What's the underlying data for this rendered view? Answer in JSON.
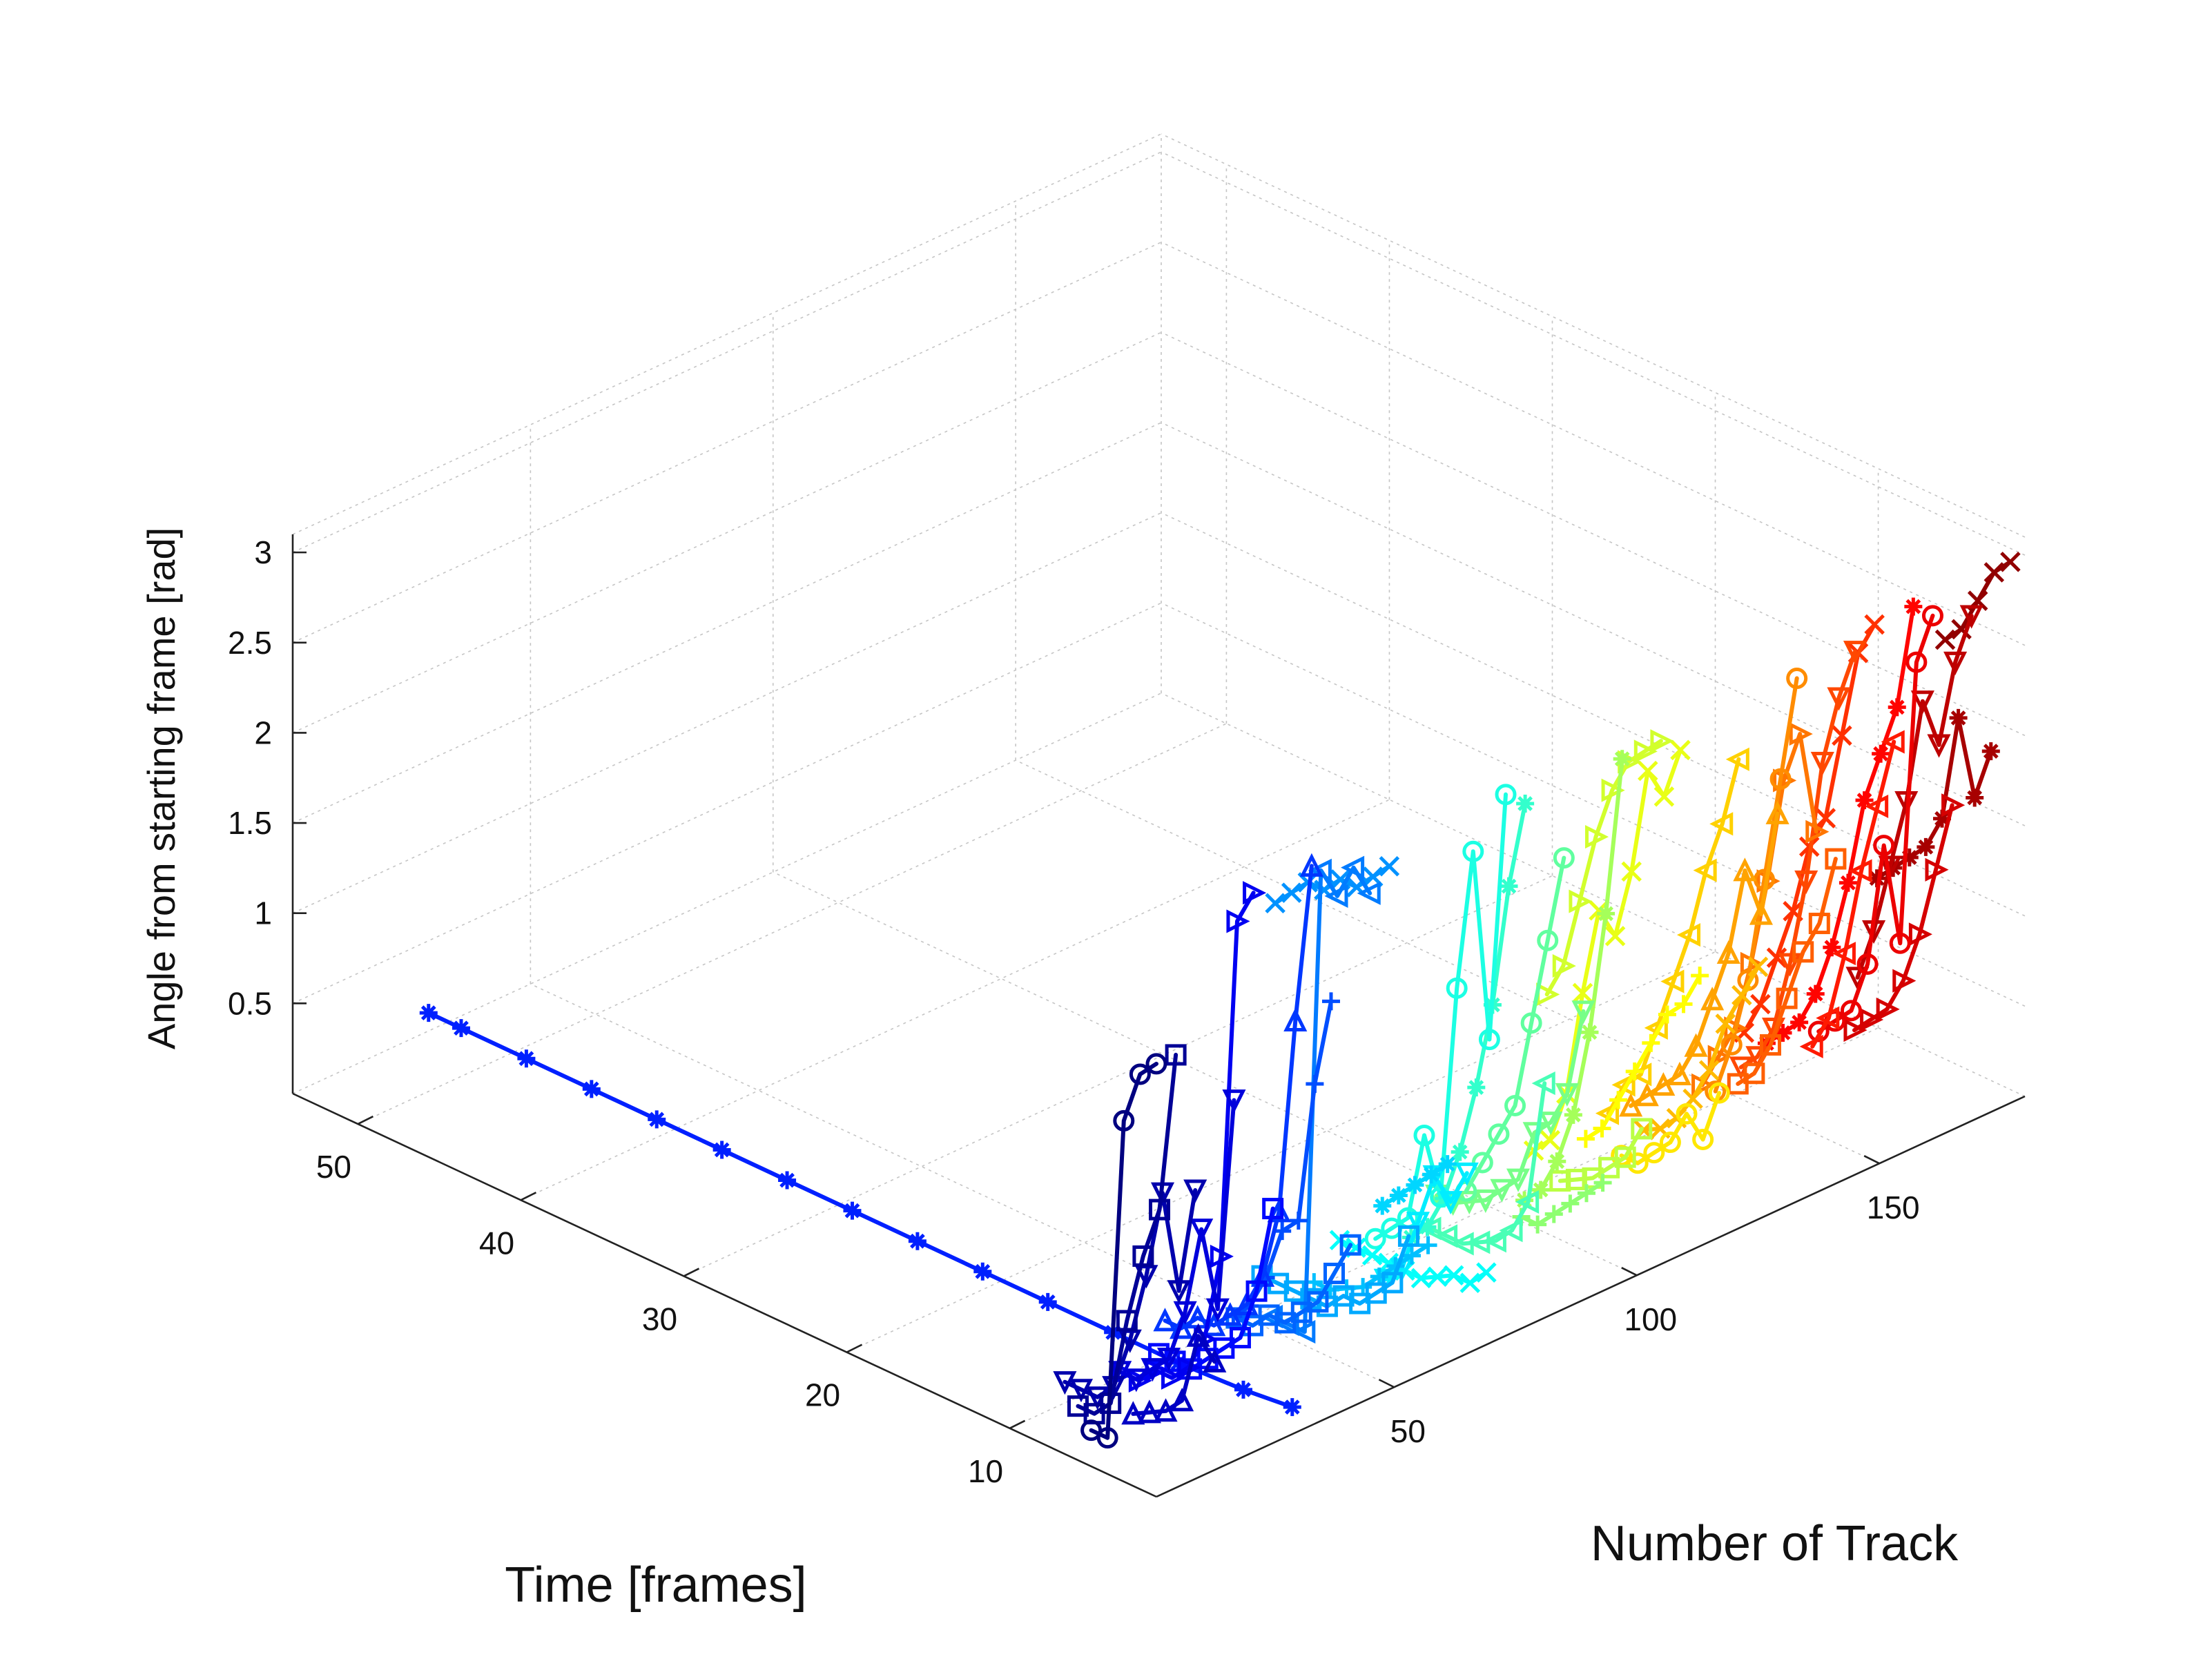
{
  "chart_data": {
    "type": "line",
    "projection": "3d",
    "xlabel": "Time [frames]",
    "ylabel": "Number of Track",
    "zlabel": "Angle from starting frame [rad]",
    "xlim": [
      1,
      54
    ],
    "ylim": [
      1,
      180
    ],
    "zlim": [
      0,
      3.1
    ],
    "xticks": [
      10,
      20,
      30,
      40,
      50
    ],
    "yticks": [
      50,
      100,
      150
    ],
    "zticks": [
      0.5,
      1,
      1.5,
      2,
      2.5,
      3
    ],
    "grid": true,
    "colormap": "jet",
    "legend": "none",
    "series": [
      {
        "track": 1,
        "marker": "o",
        "x": [
          1,
          2,
          3,
          4,
          5
        ],
        "z": [
          2.4,
          2.3,
          2.0,
          0.2,
          0.2
        ]
      },
      {
        "track": 5,
        "marker": "s",
        "x": [
          1,
          2,
          3,
          4,
          5,
          6,
          7
        ],
        "z": [
          2.4,
          1.5,
          1.2,
          0.8,
          0.3,
          0.2,
          0.2
        ]
      },
      {
        "track": 9,
        "marker": "v",
        "x": [
          1,
          2,
          3,
          4,
          5,
          6,
          7,
          8,
          9
        ],
        "z": [
          1.6,
          1.0,
          1.5,
          1.0,
          0.6,
          0.3,
          0.2,
          0.2,
          0.2
        ]
      },
      {
        "track": 13,
        "marker": "^",
        "x": [
          1,
          2,
          3,
          4,
          5,
          6
        ],
        "z": [
          0.6,
          0.7,
          0.3,
          0.2,
          0.15,
          0.1
        ]
      },
      {
        "track": 17,
        "marker": "v",
        "x": [
          1,
          2,
          3,
          4,
          5,
          6,
          7,
          8
        ],
        "z": [
          2.0,
          0.8,
          1.2,
          0.7,
          0.4,
          0.3,
          0.2,
          0.2
        ]
      },
      {
        "track": 21,
        "marker": ">",
        "x": [
          1,
          2,
          3,
          4,
          5,
          6,
          7,
          8,
          9
        ],
        "z": [
          3.1,
          2.9,
          1.0,
          0.5,
          0.3,
          0.2,
          0.2,
          0.1,
          0.1
        ]
      },
      {
        "track": 25,
        "marker": "s",
        "x": [
          1,
          2,
          3,
          4,
          5,
          6,
          7,
          8
        ],
        "z": [
          1.3,
          0.8,
          0.5,
          0.4,
          0.3,
          0.2,
          0.2,
          0.2
        ]
      },
      {
        "track": 29,
        "marker": "*",
        "x": [
          1,
          4,
          8,
          12,
          16,
          20,
          24,
          28,
          32,
          36,
          40,
          44,
          48,
          52,
          54
        ],
        "z": [
          0.15,
          0.12,
          0.1,
          0.1,
          0.1,
          0.1,
          0.1,
          0.1,
          0.1,
          0.1,
          0.1,
          0.1,
          0.1,
          0.1,
          0.1
        ]
      },
      {
        "track": 33,
        "marker": "^",
        "x": [
          1,
          2,
          3,
          4,
          5,
          6,
          7,
          8,
          9,
          10
        ],
        "z": [
          3.1,
          2.2,
          1.1,
          0.7,
          0.5,
          0.4,
          0.3,
          0.3,
          0.2,
          0.2
        ]
      },
      {
        "track": 37,
        "marker": "+",
        "x": [
          1,
          2,
          3,
          4,
          5,
          6,
          7
        ],
        "z": [
          2.3,
          1.8,
          1.0,
          0.9,
          0.6,
          0.4,
          0.3
        ]
      },
      {
        "track": 41,
        "marker": "s",
        "x": [
          1,
          2,
          3,
          4,
          5,
          6,
          7,
          8
        ],
        "z": [
          0.9,
          0.7,
          0.5,
          0.4,
          0.3,
          0.3,
          0.2,
          0.2
        ]
      },
      {
        "track": 45,
        "marker": "<",
        "x": [
          1,
          2,
          3,
          4,
          5,
          6,
          7
        ],
        "z": [
          2.8,
          2.9,
          2.7,
          2.8,
          0.2,
          0.2,
          0.2
        ]
      },
      {
        "track": 49,
        "marker": "x",
        "x": [
          1,
          2,
          3,
          4,
          5,
          6,
          7,
          8
        ],
        "z": [
          2.9,
          2.8,
          2.7,
          2.7,
          2.6,
          2.6,
          2.5,
          2.4
        ]
      },
      {
        "track": 53,
        "marker": "s",
        "x": [
          1,
          2,
          3,
          4,
          5,
          6,
          7,
          8,
          9,
          10
        ],
        "z": [
          0.8,
          0.5,
          0.4,
          0.3,
          0.3,
          0.2,
          0.2,
          0.2,
          0.2,
          0.2
        ]
      },
      {
        "track": 57,
        "marker": "+",
        "x": [
          1,
          2,
          3,
          4,
          5,
          6,
          7,
          8
        ],
        "z": [
          0.7,
          0.6,
          0.5,
          0.4,
          0.3,
          0.25,
          0.2,
          0.2
        ]
      },
      {
        "track": 61,
        "marker": "*",
        "x": [
          1,
          2,
          3,
          4,
          5
        ],
        "z": [
          1.1,
          1.0,
          0.9,
          0.8,
          0.7
        ]
      },
      {
        "track": 65,
        "marker": "v",
        "x": [
          1,
          2,
          3,
          4,
          5,
          6
        ],
        "z": [
          1.0,
          0.8,
          0.9,
          0.6,
          0.3,
          0.2
        ]
      },
      {
        "track": 69,
        "marker": "x",
        "x": [
          1,
          2,
          3,
          4,
          5,
          6,
          7,
          8,
          9,
          10
        ],
        "z": [
          0.4,
          0.3,
          0.3,
          0.25,
          0.2,
          0.2,
          0.2,
          0.2,
          0.2,
          0.2
        ]
      },
      {
        "track": 73,
        "marker": "o",
        "x": [
          1,
          2,
          3,
          4,
          5,
          6,
          7,
          8,
          9
        ],
        "z": [
          3.0,
          1.6,
          2.6,
          1.8,
          0.6,
          0.9,
          0.4,
          0.3,
          0.2
        ]
      },
      {
        "track": 77,
        "marker": "*",
        "x": [
          1,
          2,
          3,
          4,
          5,
          6,
          7,
          8
        ],
        "z": [
          2.9,
          2.4,
          1.7,
          1.2,
          0.8,
          0.5,
          0.3,
          0.2
        ]
      },
      {
        "track": 81,
        "marker": "<",
        "x": [
          1,
          2,
          3,
          4,
          5,
          6,
          7,
          8
        ],
        "z": [
          1.3,
          0.6,
          0.4,
          0.3,
          0.25,
          0.2,
          0.2,
          0.2
        ]
      },
      {
        "track": 85,
        "marker": "o",
        "x": [
          1,
          2,
          3,
          4,
          5,
          6,
          7
        ],
        "z": [
          2.5,
          2.0,
          1.5,
          1.0,
          0.8,
          0.6,
          0.4
        ]
      },
      {
        "track": 89,
        "marker": "v",
        "x": [
          1,
          2,
          3,
          4,
          5,
          6,
          7,
          8,
          9,
          10
        ],
        "z": [
          1.6,
          1.1,
          0.9,
          0.8,
          0.5,
          0.4,
          0.3,
          0.25,
          0.2,
          0.2
        ]
      },
      {
        "track": 93,
        "marker": "+",
        "x": [
          1,
          2,
          3,
          4,
          5,
          6
        ],
        "z": [
          0.6,
          0.5,
          0.4,
          0.3,
          0.2,
          0.2
        ]
      },
      {
        "track": 97,
        "marker": "*",
        "x": [
          1,
          2,
          3,
          4,
          5,
          6,
          7
        ],
        "z": [
          2.9,
          2.0,
          1.3,
          0.8,
          0.5,
          0.3,
          0.2
        ]
      },
      {
        "track": 101,
        "marker": "s",
        "x": [
          1,
          2,
          3,
          4,
          5,
          6
        ],
        "z": [
          0.8,
          0.6,
          0.5,
          0.4,
          0.35,
          0.3
        ]
      },
      {
        "track": 105,
        "marker": ">",
        "x": [
          1,
          2,
          3,
          4,
          5,
          6,
          7,
          8
        ],
        "z": [
          2.9,
          2.8,
          2.7,
          2.5,
          2.2,
          1.8,
          1.4,
          1.2
        ]
      },
      {
        "track": 109,
        "marker": "x",
        "x": [
          1,
          2,
          3,
          4,
          5,
          6,
          7,
          8,
          9,
          10
        ],
        "z": [
          2.8,
          2.5,
          2.6,
          2.0,
          1.6,
          1.7,
          1.2,
          0.6,
          0.3,
          0.2
        ]
      },
      {
        "track": 113,
        "marker": "+",
        "x": [
          1,
          2,
          3,
          4,
          5,
          6,
          7,
          8
        ],
        "z": [
          1.5,
          1.3,
          1.2,
          1.0,
          0.8,
          0.6,
          0.4,
          0.3
        ]
      },
      {
        "track": 117,
        "marker": "o",
        "x": [
          1,
          2,
          3,
          4,
          5,
          6,
          7
        ],
        "z": [
          0.8,
          0.5,
          0.6,
          0.4,
          0.3,
          0.2,
          0.2
        ]
      },
      {
        "track": 121,
        "marker": "<",
        "x": [
          1,
          2,
          3,
          4,
          5,
          6,
          7,
          8,
          9
        ],
        "z": [
          2.6,
          2.2,
          1.9,
          1.5,
          1.2,
          0.9,
          0.6,
          0.5,
          0.3
        ]
      },
      {
        "track": 125,
        "marker": "x",
        "x": [
          1,
          2,
          3,
          4,
          5,
          6,
          7,
          8
        ],
        "z": [
          1.4,
          1.2,
          1.0,
          0.7,
          0.5,
          0.35,
          0.25,
          0.2
        ]
      },
      {
        "track": 129,
        "marker": "^",
        "x": [
          1,
          2,
          3,
          4,
          5,
          6,
          7,
          8,
          9,
          10
        ],
        "z": [
          2.2,
          1.6,
          1.8,
          1.3,
          1.0,
          0.7,
          0.5,
          0.4,
          0.3,
          0.2
        ]
      },
      {
        "track": 133,
        "marker": "o",
        "x": [
          1,
          2,
          3,
          4,
          5,
          6
        ],
        "z": [
          2.9,
          2.3,
          1.7,
          1.1,
          0.7,
          0.4
        ]
      },
      {
        "track": 137,
        "marker": ">",
        "x": [
          1,
          2,
          3,
          4,
          5,
          6,
          7,
          8
        ],
        "z": [
          2.0,
          2.5,
          2.2,
          1.6,
          1.1,
          0.7,
          0.5,
          0.3
        ]
      },
      {
        "track": 141,
        "marker": "s",
        "x": [
          1,
          2,
          3,
          4,
          5,
          6,
          7
        ],
        "z": [
          1.8,
          1.4,
          1.2,
          0.9,
          0.6,
          0.4,
          0.3
        ]
      },
      {
        "track": 145,
        "marker": "v",
        "x": [
          1,
          2,
          3,
          4,
          5,
          6,
          7,
          8
        ],
        "z": [
          2.9,
          2.6,
          2.2,
          1.5,
          1.0,
          0.6,
          0.4,
          0.3
        ]
      },
      {
        "track": 149,
        "marker": "x",
        "x": [
          1,
          2,
          3,
          4,
          5,
          6,
          7,
          8,
          9
        ],
        "z": [
          3.0,
          2.8,
          2.3,
          1.8,
          1.6,
          1.2,
          0.9,
          0.6,
          0.4
        ]
      },
      {
        "track": 153,
        "marker": "<",
        "x": [
          1,
          2,
          3,
          4,
          5,
          6
        ],
        "z": [
          2.3,
          1.9,
          1.5,
          1.0,
          0.6,
          0.4
        ]
      },
      {
        "track": 157,
        "marker": "*",
        "x": [
          1,
          2,
          3,
          4,
          5,
          6,
          7,
          8,
          9,
          10
        ],
        "z": [
          3.0,
          2.4,
          2.1,
          1.8,
          1.3,
          0.9,
          0.6,
          0.4,
          0.3,
          0.2
        ]
      },
      {
        "track": 161,
        "marker": "o",
        "x": [
          1,
          2,
          3,
          4,
          5,
          6,
          7,
          8
        ],
        "z": [
          2.9,
          2.6,
          1.0,
          1.5,
          0.8,
          0.5,
          0.4,
          0.3
        ]
      },
      {
        "track": 165,
        "marker": ">",
        "x": [
          1,
          2,
          3,
          4,
          5,
          6,
          7
        ],
        "z": [
          1.8,
          1.4,
          1.0,
          0.7,
          0.5,
          0.4,
          0.3
        ]
      },
      {
        "track": 169,
        "marker": "v",
        "x": [
          1,
          2,
          3,
          4,
          5,
          6,
          7,
          8
        ],
        "z": [
          2.8,
          2.5,
          2.0,
          2.2,
          1.6,
          1.2,
          0.8,
          0.5
        ]
      },
      {
        "track": 173,
        "marker": "*",
        "x": [
          1,
          2,
          3,
          4,
          5,
          6,
          7,
          8
        ],
        "z": [
          2.0,
          1.7,
          2.1,
          1.5,
          1.3,
          1.2,
          1.1,
          1.0
        ]
      },
      {
        "track": 177,
        "marker": "x",
        "x": [
          1,
          2,
          3,
          4,
          5
        ],
        "z": [
          3.0,
          2.9,
          2.7,
          2.5,
          2.4
        ]
      }
    ]
  }
}
